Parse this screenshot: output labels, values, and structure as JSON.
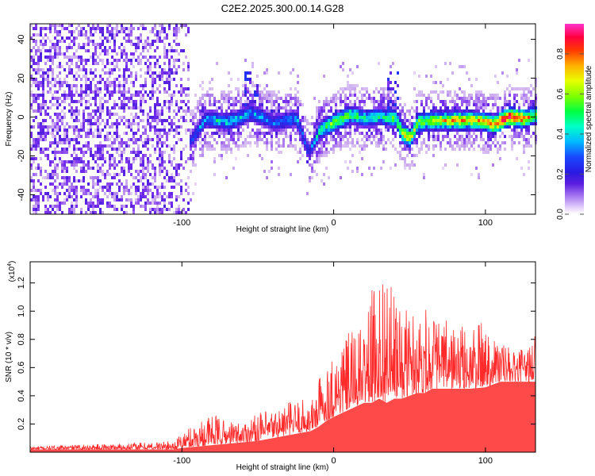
{
  "title": "C2E2.2025.300.00.14.G28",
  "chart_data": [
    {
      "type": "heatmap",
      "name": "spectrogram",
      "xlabel": "Height of straight line (km)",
      "ylabel": "Frequency (Hz)",
      "xlim": [
        -200,
        133
      ],
      "ylim": [
        -50,
        48
      ],
      "xticks": [
        -100,
        0,
        100
      ],
      "xtick_labels": [
        "-100",
        "0",
        "100"
      ],
      "yticks": [
        -40,
        -20,
        0,
        20,
        40
      ],
      "ytick_labels": [
        "-40",
        "-20",
        "0",
        "20",
        "40"
      ],
      "colorbar": {
        "label": "Normalized spectral amplitude",
        "range": [
          0.0,
          0.95
        ],
        "ticks": [
          0.0,
          0.2,
          0.4,
          0.6,
          0.8
        ],
        "tick_labels": [
          "0.0",
          "0.2",
          "0.4",
          "0.6",
          "0.8"
        ],
        "colors": [
          "#ffffff",
          "#c9a6ef",
          "#7a2ef0",
          "#3a1ad6",
          "#1a3cff",
          "#00c8ff",
          "#00ff8c",
          "#44ff00",
          "#c8ff00",
          "#ffd000",
          "#ff5a00",
          "#ff0033",
          "#ff1493",
          "#ff33cc"
        ]
      },
      "regions": [
        {
          "x_range": [
            -200,
            -95
          ],
          "freq_spread": [
            -50,
            48
          ],
          "amplitude": 0.15,
          "description": "broadband noise"
        },
        {
          "x_range": [
            -95,
            133
          ],
          "center_freq_hz": 0,
          "band_half_width_hz": 8,
          "amplitude_peak": 0.9
        }
      ],
      "ridge": {
        "x": [
          -95,
          -85,
          -70,
          -55,
          -40,
          -25,
          -17,
          -10,
          0,
          10,
          20,
          30,
          40,
          45,
          50,
          55,
          65,
          80,
          95,
          105,
          115,
          125,
          133
        ],
        "freq": [
          -12,
          0,
          -2,
          3,
          -2,
          0,
          -18,
          -6,
          -2,
          2,
          0,
          1,
          0,
          -8,
          -10,
          -2,
          -1,
          -1,
          -1,
          -3,
          1,
          0,
          2
        ],
        "amplitude": [
          0.3,
          0.4,
          0.45,
          0.4,
          0.35,
          0.4,
          0.3,
          0.5,
          0.6,
          0.55,
          0.5,
          0.5,
          0.55,
          0.7,
          0.7,
          0.6,
          0.65,
          0.75,
          0.7,
          0.8,
          0.95,
          0.8,
          0.55
        ]
      }
    },
    {
      "type": "line",
      "name": "snr",
      "xlabel": "Height of straight line (km)",
      "ylabel": "SNR (10 * v/v)",
      "y_multiplier": "(x10",
      "y_multiplier_exp": "4",
      "y_multiplier_close": ")",
      "xlim": [
        -200,
        133
      ],
      "ylim": [
        0,
        1.35
      ],
      "xticks": [
        -100,
        0,
        100
      ],
      "xtick_labels": [
        "-100",
        "0",
        "100"
      ],
      "yticks": [
        0.2,
        0.4,
        0.6,
        0.8,
        1.0,
        1.2
      ],
      "ytick_labels": [
        "0.2",
        "0.4",
        "0.6",
        "0.8",
        "1.0",
        "1.2"
      ],
      "color": "#ff2a2a",
      "envelope": {
        "x": [
          -200,
          -150,
          -105,
          -100,
          -90,
          -80,
          -70,
          -60,
          -50,
          -40,
          -30,
          -20,
          -15,
          -10,
          -5,
          0,
          10,
          20,
          25,
          30,
          35,
          40,
          45,
          50,
          55,
          60,
          65,
          70,
          80,
          90,
          100,
          110,
          120,
          130,
          133
        ],
        "baseline": [
          0.02,
          0.02,
          0.02,
          0.03,
          0.04,
          0.05,
          0.06,
          0.07,
          0.08,
          0.1,
          0.12,
          0.14,
          0.15,
          0.18,
          0.22,
          0.25,
          0.3,
          0.35,
          0.35,
          0.38,
          0.35,
          0.38,
          0.38,
          0.4,
          0.42,
          0.42,
          0.45,
          0.45,
          0.45,
          0.45,
          0.46,
          0.5,
          0.5,
          0.5,
          0.5
        ],
        "peak": [
          0.04,
          0.06,
          0.08,
          0.14,
          0.22,
          0.28,
          0.22,
          0.22,
          0.28,
          0.3,
          0.36,
          0.38,
          0.35,
          0.55,
          0.62,
          0.72,
          0.85,
          0.9,
          1.15,
          1.25,
          1.32,
          1.1,
          1.0,
          1.05,
          1.0,
          1.08,
          0.98,
          0.95,
          0.92,
          0.88,
          0.95,
          0.8,
          0.7,
          0.78,
          0.9
        ]
      }
    }
  ]
}
